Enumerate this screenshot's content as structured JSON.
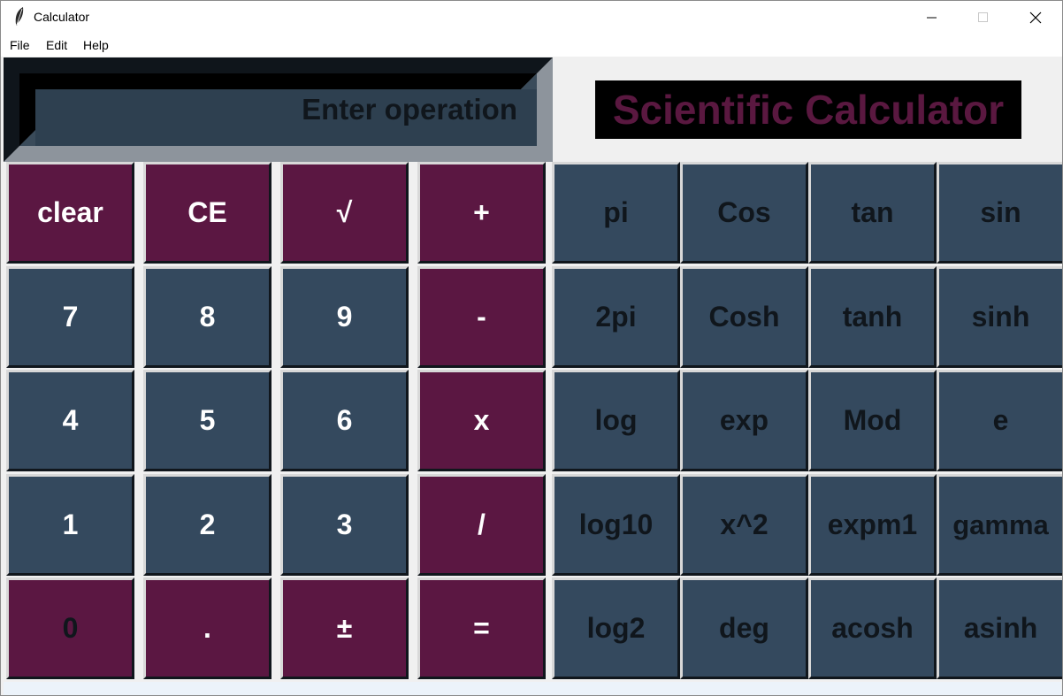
{
  "window": {
    "title": "Calculator",
    "icon": "feather-icon",
    "controls": [
      "minimize-icon",
      "maximize-icon",
      "close-icon"
    ]
  },
  "menu": [
    "File",
    "Edit",
    "Help"
  ],
  "display": {
    "text": "Enter operation"
  },
  "header": {
    "label": "Scientific Calculator",
    "color": "#5a1840"
  },
  "colors": {
    "slate": "#34495e",
    "plum": "#5b1742",
    "display_bg": "#2e4050"
  },
  "buttons": {
    "basic": [
      [
        "clear",
        "CE",
        "√",
        "+"
      ],
      [
        "7",
        "8",
        "9",
        "-"
      ],
      [
        "4",
        "5",
        "6",
        "x"
      ],
      [
        "1",
        "2",
        "3",
        "/"
      ],
      [
        "0",
        ".",
        "±",
        "="
      ]
    ],
    "scientific": [
      [
        "pi",
        "Cos",
        "tan",
        "sin"
      ],
      [
        "2pi",
        "Cosh",
        "tanh",
        "sinh"
      ],
      [
        "log",
        "exp",
        "Mod",
        "e"
      ],
      [
        "log10",
        "x^2",
        "expm1",
        "gamma"
      ],
      [
        "log2",
        "deg",
        "acosh",
        "asinh"
      ]
    ]
  }
}
